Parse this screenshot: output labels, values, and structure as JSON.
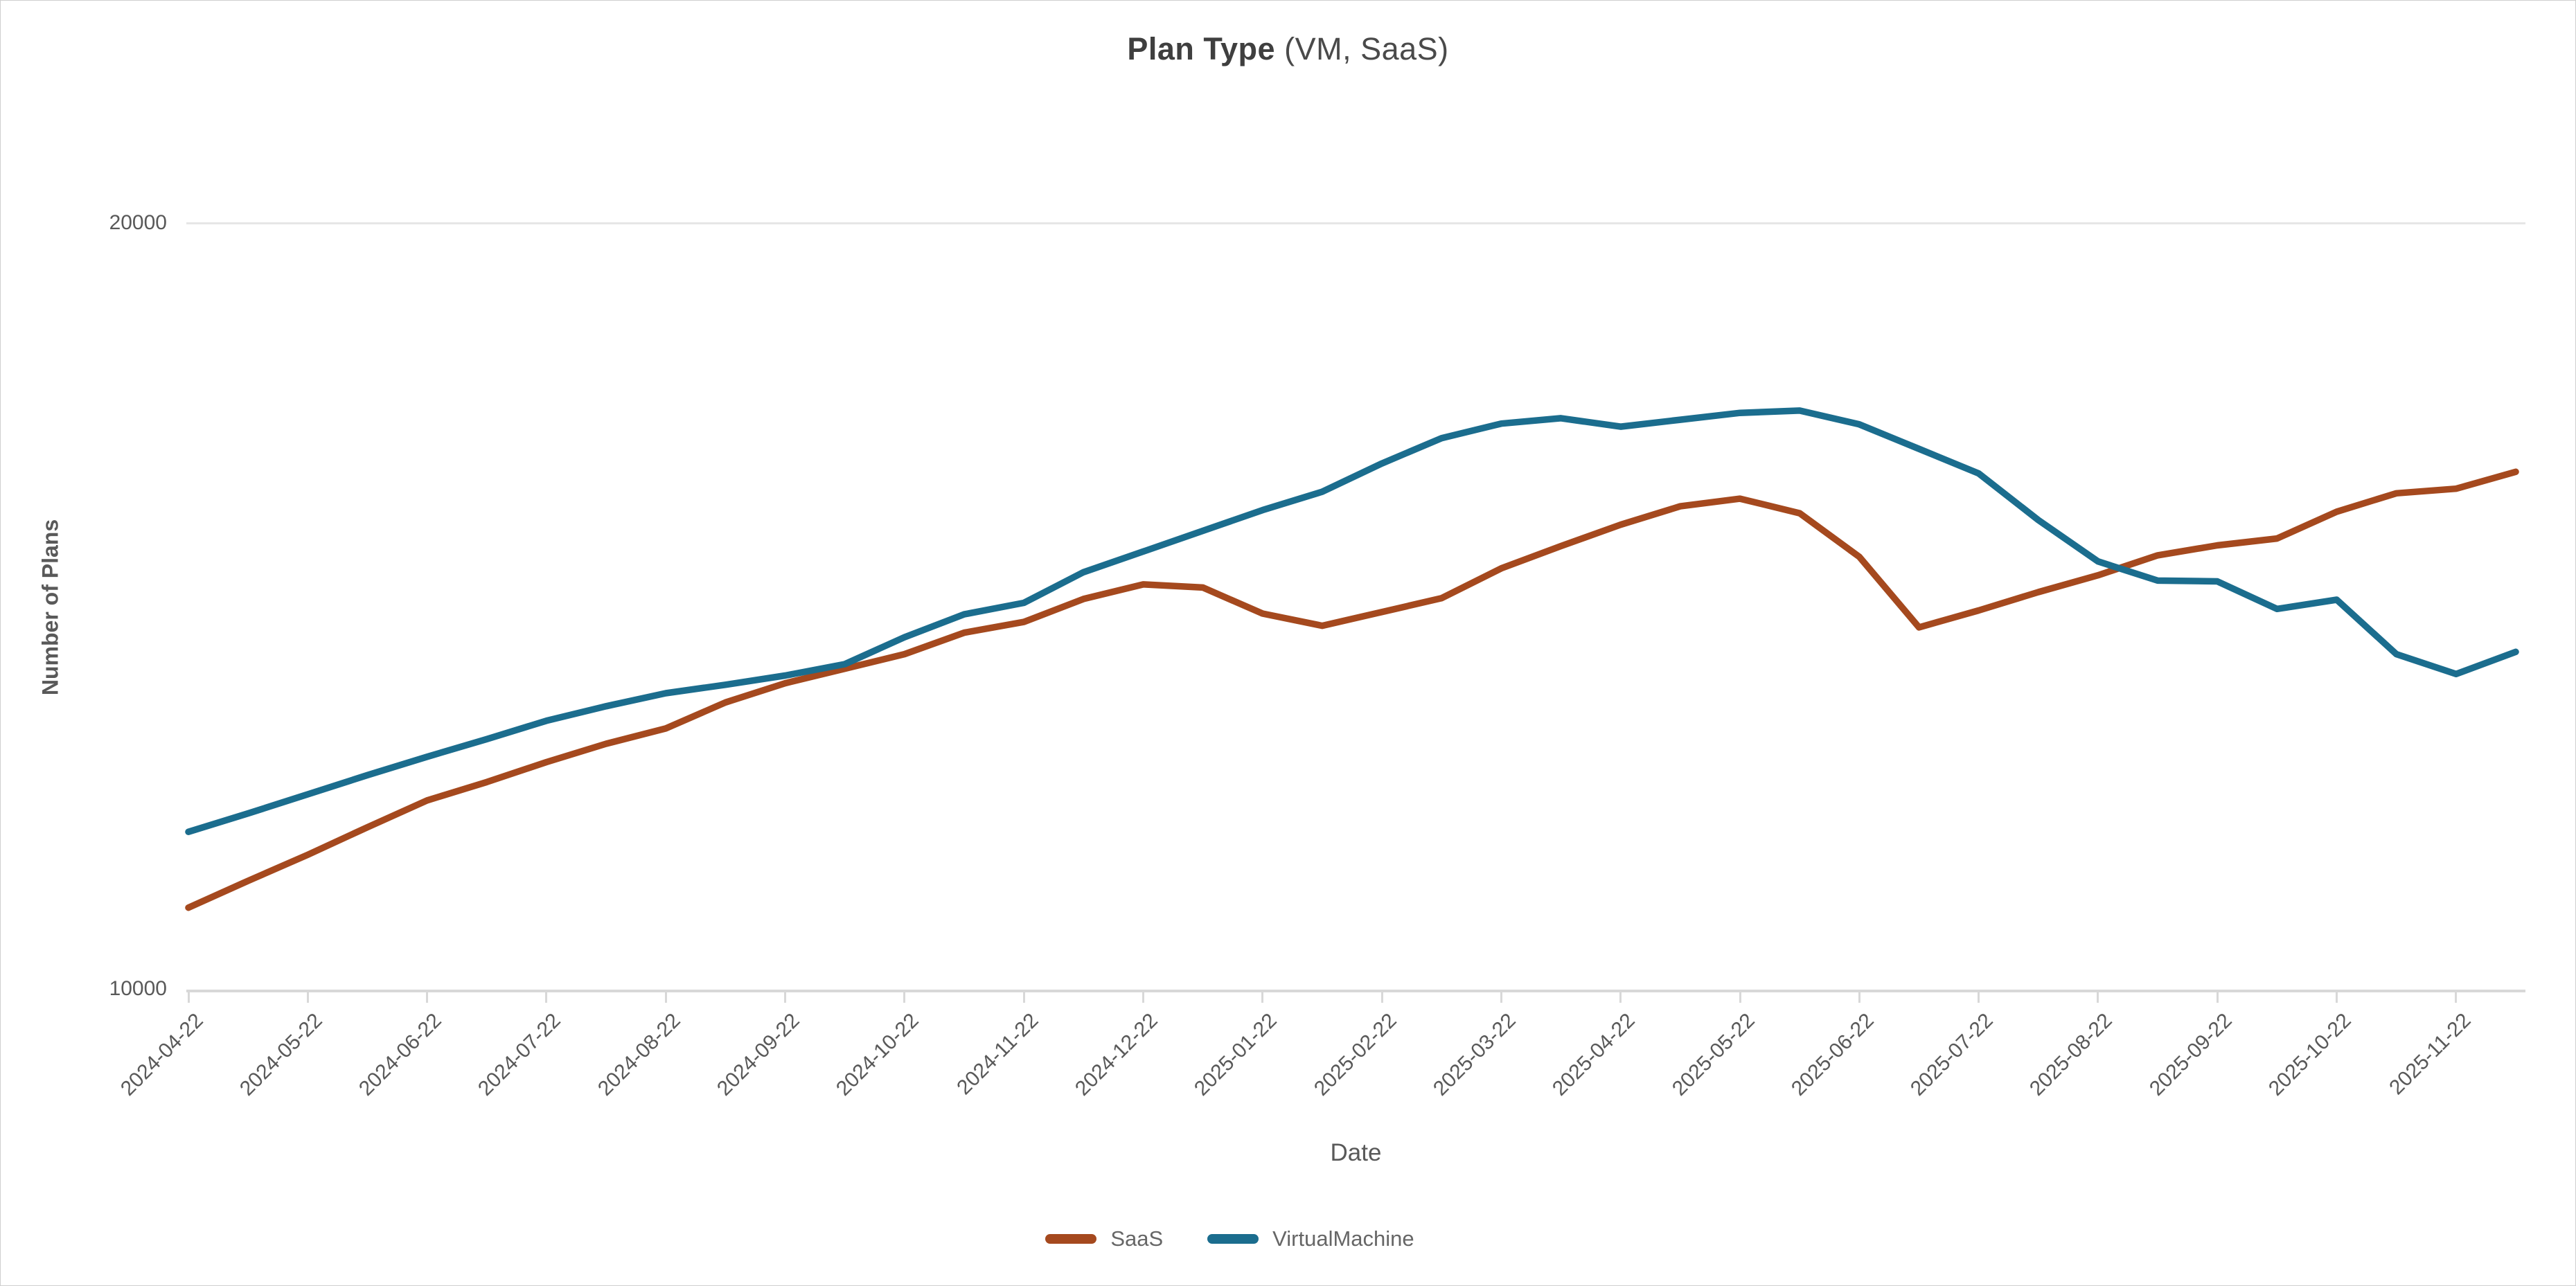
{
  "title": {
    "bold": "Plan Type",
    "regular": " (VM, SaaS)"
  },
  "y_axis": {
    "label": "Number of Plans"
  },
  "x_axis": {
    "label": "Date"
  },
  "legend": [
    {
      "label": "SaaS",
      "color": "#a5491e"
    },
    {
      "label": "VirtualMachine",
      "color": "#1b6d8e"
    }
  ],
  "chart_data": {
    "type": "line",
    "title": "Plan Type (VM, SaaS)",
    "xlabel": "Date",
    "ylabel": "Number of Plans",
    "ylim": [
      10000,
      20000
    ],
    "y_ticks": [
      10000,
      20000
    ],
    "grid": "horizontal gridline at 20000 only",
    "legend_position": "bottom-center",
    "x": [
      "2024-04-22",
      "2024-05-08",
      "2024-05-22",
      "2024-06-08",
      "2024-06-22",
      "2024-07-08",
      "2024-07-22",
      "2024-08-08",
      "2024-08-22",
      "2024-09-08",
      "2024-09-22",
      "2024-10-08",
      "2024-10-22",
      "2024-11-08",
      "2024-11-22",
      "2024-12-08",
      "2024-12-22",
      "2025-01-08",
      "2025-01-22",
      "2025-02-08",
      "2025-02-22",
      "2025-03-08",
      "2025-03-22",
      "2025-04-08",
      "2025-04-22",
      "2025-05-08",
      "2025-05-22",
      "2025-06-08",
      "2025-06-22",
      "2025-07-08",
      "2025-07-22",
      "2025-08-08",
      "2025-08-22",
      "2025-09-08",
      "2025-09-22",
      "2025-10-08",
      "2025-10-22",
      "2025-11-08",
      "2025-11-22",
      "2025-12-08"
    ],
    "x_tick_labels": [
      "2024-04-22",
      "2024-05-22",
      "2024-06-22",
      "2024-07-22",
      "2024-08-22",
      "2024-09-22",
      "2024-10-22",
      "2024-11-22",
      "2024-12-22",
      "2025-01-22",
      "2025-02-22",
      "2025-03-22",
      "2025-04-22",
      "2025-05-22",
      "2025-06-22",
      "2025-07-22",
      "2025-08-22",
      "2025-09-22",
      "2025-10-22",
      "2025-11-22"
    ],
    "series": [
      {
        "name": "SaaS",
        "color": "#a5491e",
        "values": [
          11070,
          11420,
          11760,
          12120,
          12470,
          12710,
          12970,
          13210,
          13410,
          13750,
          14000,
          14190,
          14380,
          14660,
          14800,
          15100,
          15290,
          15250,
          14910,
          14750,
          14930,
          15110,
          15500,
          15790,
          16070,
          16310,
          16410,
          16220,
          15650,
          14730,
          14950,
          15190,
          15410,
          15670,
          15800,
          15890,
          16240,
          16480,
          16540,
          16760
        ]
      },
      {
        "name": "VirtualMachine",
        "color": "#1b6d8e",
        "values": [
          12060,
          12300,
          12550,
          12800,
          13040,
          13270,
          13510,
          13700,
          13870,
          13980,
          14100,
          14250,
          14600,
          14900,
          15050,
          15450,
          15720,
          15990,
          16260,
          16500,
          16870,
          17200,
          17390,
          17460,
          17350,
          17440,
          17530,
          17560,
          17380,
          17060,
          16740,
          16130,
          15590,
          15340,
          15330,
          14970,
          15090,
          14380,
          14120,
          14410
        ]
      }
    ]
  }
}
